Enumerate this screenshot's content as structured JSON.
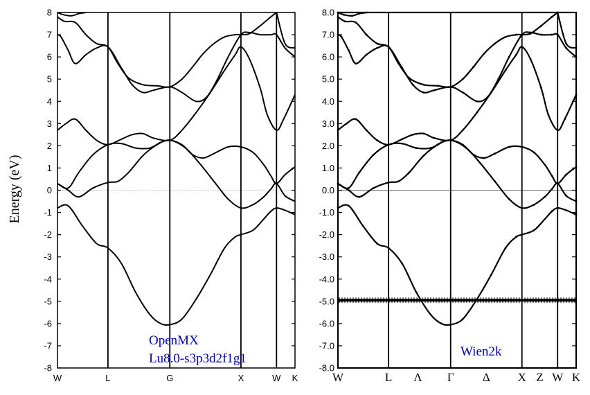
{
  "ylabel": "Energy (eV)",
  "colors": {
    "line": "#000000",
    "annotation": "#0000cc",
    "zero_line_left": "#aaaaaa",
    "zero_line_right": "#777777"
  },
  "chart_data": [
    {
      "type": "line",
      "label_lines": [
        "OpenMX",
        "Lu8.0-s3p3d2f1g1"
      ],
      "ylim": [
        -8,
        8
      ],
      "yticks": [
        "8",
        "7",
        "6",
        "5",
        "4",
        "3",
        "2",
        "1",
        "0",
        "-1",
        "-2",
        "-3",
        "-4",
        "-5",
        "-6",
        "-7",
        "-8"
      ],
      "xlim": [
        0,
        3.34
      ],
      "kpoints": [
        {
          "label": "W",
          "x": 0
        },
        {
          "label": "L",
          "x": 0.71
        },
        {
          "label": "G",
          "x": 1.58
        },
        {
          "label": "X",
          "x": 2.58
        },
        {
          "label": "W",
          "x": 3.08
        },
        {
          "label": "K",
          "x": 3.34
        }
      ],
      "grid": false,
      "bands": [
        [
          [
            0,
            -0.8
          ],
          [
            0.15,
            -0.7
          ],
          [
            0.35,
            -1.6
          ],
          [
            0.55,
            -2.4
          ],
          [
            0.71,
            -2.6
          ],
          [
            0.9,
            -3.3
          ],
          [
            1.1,
            -4.6
          ],
          [
            1.3,
            -5.6
          ],
          [
            1.45,
            -6.0
          ],
          [
            1.58,
            -6.05
          ],
          [
            1.75,
            -5.8
          ],
          [
            1.95,
            -4.9
          ],
          [
            2.15,
            -3.8
          ],
          [
            2.35,
            -2.6
          ],
          [
            2.5,
            -2.1
          ],
          [
            2.58,
            -2.0
          ],
          [
            2.75,
            -1.8
          ],
          [
            2.9,
            -1.3
          ],
          [
            3.0,
            -0.95
          ],
          [
            3.08,
            -0.8
          ],
          [
            3.2,
            -0.9
          ],
          [
            3.34,
            -1.1
          ]
        ],
        [
          [
            0,
            0.3
          ],
          [
            0.15,
            0.0
          ],
          [
            0.3,
            -0.3
          ],
          [
            0.5,
            0.1
          ],
          [
            0.71,
            0.35
          ],
          [
            0.85,
            0.4
          ],
          [
            1.0,
            0.8
          ],
          [
            1.2,
            1.55
          ],
          [
            1.4,
            2.05
          ],
          [
            1.58,
            2.25
          ],
          [
            1.8,
            1.9
          ],
          [
            2.0,
            1.2
          ],
          [
            2.2,
            0.4
          ],
          [
            2.4,
            -0.4
          ],
          [
            2.58,
            -0.8
          ],
          [
            2.75,
            -0.65
          ],
          [
            2.9,
            -0.3
          ],
          [
            3.0,
            0.05
          ],
          [
            3.08,
            0.3
          ],
          [
            3.2,
            -0.25
          ],
          [
            3.34,
            -0.5
          ]
        ],
        [
          [
            0,
            0.3
          ],
          [
            0.15,
            0.1
          ],
          [
            0.3,
            0.8
          ],
          [
            0.5,
            1.6
          ],
          [
            0.71,
            2.05
          ],
          [
            0.9,
            2.1
          ],
          [
            1.1,
            1.9
          ],
          [
            1.3,
            1.9
          ],
          [
            1.45,
            2.15
          ],
          [
            1.58,
            2.25
          ],
          [
            1.75,
            2.05
          ],
          [
            1.9,
            1.6
          ],
          [
            2.05,
            1.45
          ],
          [
            2.2,
            1.65
          ],
          [
            2.4,
            1.95
          ],
          [
            2.58,
            1.95
          ],
          [
            2.75,
            1.7
          ],
          [
            2.9,
            1.15
          ],
          [
            3.0,
            0.65
          ],
          [
            3.08,
            0.3
          ],
          [
            3.2,
            0.7
          ],
          [
            3.34,
            1.05
          ]
        ],
        [
          [
            0,
            2.7
          ],
          [
            0.12,
            3.0
          ],
          [
            0.25,
            3.2
          ],
          [
            0.4,
            2.7
          ],
          [
            0.55,
            2.25
          ],
          [
            0.71,
            2.05
          ],
          [
            0.9,
            2.3
          ],
          [
            1.05,
            2.5
          ],
          [
            1.2,
            2.55
          ],
          [
            1.35,
            2.35
          ],
          [
            1.58,
            2.25
          ],
          [
            1.75,
            2.7
          ],
          [
            1.95,
            3.5
          ],
          [
            2.15,
            4.4
          ],
          [
            2.35,
            5.4
          ],
          [
            2.5,
            6.1
          ],
          [
            2.58,
            6.45
          ],
          [
            2.7,
            5.9
          ],
          [
            2.85,
            4.6
          ],
          [
            2.95,
            3.4
          ],
          [
            3.08,
            2.7
          ],
          [
            3.18,
            3.2
          ],
          [
            3.34,
            4.3
          ]
        ],
        [
          [
            0,
            7.0
          ],
          [
            0.05,
            6.9
          ],
          [
            0.15,
            6.3
          ],
          [
            0.25,
            5.7
          ],
          [
            0.4,
            6.1
          ],
          [
            0.55,
            6.4
          ],
          [
            0.71,
            6.45
          ],
          [
            0.9,
            5.5
          ],
          [
            1.05,
            4.75
          ],
          [
            1.2,
            4.4
          ],
          [
            1.35,
            4.5
          ],
          [
            1.58,
            4.65
          ],
          [
            1.75,
            4.4
          ],
          [
            1.95,
            4.0
          ],
          [
            2.1,
            4.2
          ],
          [
            2.25,
            5.0
          ],
          [
            2.4,
            6.0
          ],
          [
            2.58,
            7.0
          ],
          [
            2.7,
            7.1
          ],
          [
            2.85,
            7.0
          ],
          [
            3.0,
            7.0
          ],
          [
            3.08,
            7.0
          ],
          [
            3.2,
            6.4
          ],
          [
            3.34,
            6.0
          ]
        ],
        [
          [
            0,
            7.8
          ],
          [
            0.1,
            7.6
          ],
          [
            0.25,
            7.55
          ],
          [
            0.4,
            7.0
          ],
          [
            0.55,
            6.6
          ],
          [
            0.71,
            6.45
          ],
          [
            0.85,
            5.7
          ],
          [
            1.0,
            5.05
          ],
          [
            1.2,
            4.75
          ],
          [
            1.4,
            4.7
          ],
          [
            1.58,
            4.65
          ],
          [
            1.75,
            5.0
          ],
          [
            1.9,
            5.55
          ],
          [
            2.05,
            6.15
          ],
          [
            2.2,
            6.6
          ],
          [
            2.35,
            6.9
          ],
          [
            2.5,
            7.0
          ],
          [
            2.58,
            7.0
          ],
          [
            2.7,
            7.05
          ],
          [
            2.85,
            7.4
          ],
          [
            3.0,
            7.8
          ],
          [
            3.08,
            8.0
          ]
        ],
        [
          [
            0,
            8.0
          ],
          [
            0.08,
            7.9
          ],
          [
            0.2,
            7.85
          ],
          [
            0.3,
            7.95
          ],
          [
            0.4,
            8.0
          ]
        ],
        [
          [
            3.08,
            8.0
          ],
          [
            3.2,
            6.6
          ],
          [
            3.34,
            6.4
          ]
        ]
      ]
    },
    {
      "type": "line",
      "label_lines": [
        "Wien2k"
      ],
      "ylim": [
        -8,
        8
      ],
      "yticks": [
        "8.0",
        "7.0",
        "6.0",
        "5.0",
        "4.0",
        "3.0",
        "2.0",
        "1.0",
        "0.0",
        "-1.0",
        "-2.0",
        "-3.0",
        "-4.0",
        "-5.0",
        "-6.0",
        "-7.0",
        "-8.0"
      ],
      "xlim": [
        0,
        3.34
      ],
      "kpoints": [
        {
          "label": "W",
          "x": 0
        },
        {
          "label": "L",
          "x": 0.71
        },
        {
          "label": "Λ",
          "x": 1.12
        },
        {
          "label": "Γ",
          "x": 1.58
        },
        {
          "label": "Δ",
          "x": 2.08
        },
        {
          "label": "X",
          "x": 2.58
        },
        {
          "label": "Z",
          "x": 2.83
        },
        {
          "label": "W",
          "x": 3.08
        },
        {
          "label": "K",
          "x": 3.34
        }
      ],
      "vertical_lines_at": [
        0.71,
        1.58,
        2.58,
        3.08
      ],
      "grid": false,
      "flat_band": -4.95,
      "bands": [
        [
          [
            0,
            -0.8
          ],
          [
            0.15,
            -0.7
          ],
          [
            0.35,
            -1.6
          ],
          [
            0.55,
            -2.4
          ],
          [
            0.71,
            -2.6
          ],
          [
            0.9,
            -3.3
          ],
          [
            1.1,
            -4.6
          ],
          [
            1.3,
            -5.6
          ],
          [
            1.45,
            -6.0
          ],
          [
            1.58,
            -6.05
          ],
          [
            1.75,
            -5.8
          ],
          [
            1.95,
            -4.9
          ],
          [
            2.15,
            -3.8
          ],
          [
            2.35,
            -2.6
          ],
          [
            2.5,
            -2.1
          ],
          [
            2.58,
            -2.0
          ],
          [
            2.75,
            -1.8
          ],
          [
            2.9,
            -1.3
          ],
          [
            3.0,
            -0.95
          ],
          [
            3.08,
            -0.8
          ],
          [
            3.2,
            -0.9
          ],
          [
            3.34,
            -1.1
          ]
        ],
        [
          [
            0,
            0.3
          ],
          [
            0.15,
            0.0
          ],
          [
            0.3,
            -0.3
          ],
          [
            0.5,
            0.1
          ],
          [
            0.71,
            0.35
          ],
          [
            0.85,
            0.4
          ],
          [
            1.0,
            0.8
          ],
          [
            1.2,
            1.55
          ],
          [
            1.4,
            2.05
          ],
          [
            1.58,
            2.25
          ],
          [
            1.8,
            1.9
          ],
          [
            2.0,
            1.2
          ],
          [
            2.2,
            0.4
          ],
          [
            2.4,
            -0.4
          ],
          [
            2.58,
            -0.8
          ],
          [
            2.75,
            -0.65
          ],
          [
            2.9,
            -0.3
          ],
          [
            3.0,
            0.05
          ],
          [
            3.08,
            0.3
          ],
          [
            3.2,
            -0.25
          ],
          [
            3.34,
            -0.5
          ]
        ],
        [
          [
            0,
            0.3
          ],
          [
            0.15,
            0.1
          ],
          [
            0.3,
            0.8
          ],
          [
            0.5,
            1.6
          ],
          [
            0.71,
            2.05
          ],
          [
            0.9,
            2.1
          ],
          [
            1.1,
            1.9
          ],
          [
            1.3,
            1.9
          ],
          [
            1.45,
            2.15
          ],
          [
            1.58,
            2.25
          ],
          [
            1.75,
            2.05
          ],
          [
            1.9,
            1.6
          ],
          [
            2.05,
            1.45
          ],
          [
            2.2,
            1.65
          ],
          [
            2.4,
            1.95
          ],
          [
            2.58,
            1.95
          ],
          [
            2.75,
            1.7
          ],
          [
            2.9,
            1.15
          ],
          [
            3.0,
            0.65
          ],
          [
            3.08,
            0.3
          ],
          [
            3.2,
            0.7
          ],
          [
            3.34,
            1.05
          ]
        ],
        [
          [
            0,
            2.7
          ],
          [
            0.12,
            3.0
          ],
          [
            0.25,
            3.2
          ],
          [
            0.4,
            2.7
          ],
          [
            0.55,
            2.25
          ],
          [
            0.71,
            2.05
          ],
          [
            0.9,
            2.3
          ],
          [
            1.05,
            2.5
          ],
          [
            1.2,
            2.55
          ],
          [
            1.35,
            2.35
          ],
          [
            1.58,
            2.25
          ],
          [
            1.75,
            2.7
          ],
          [
            1.95,
            3.5
          ],
          [
            2.15,
            4.4
          ],
          [
            2.35,
            5.4
          ],
          [
            2.5,
            6.1
          ],
          [
            2.58,
            6.45
          ],
          [
            2.7,
            5.9
          ],
          [
            2.85,
            4.6
          ],
          [
            2.95,
            3.4
          ],
          [
            3.08,
            2.7
          ],
          [
            3.18,
            3.2
          ],
          [
            3.34,
            4.3
          ]
        ],
        [
          [
            0,
            7.0
          ],
          [
            0.05,
            6.9
          ],
          [
            0.15,
            6.3
          ],
          [
            0.25,
            5.7
          ],
          [
            0.4,
            6.1
          ],
          [
            0.55,
            6.4
          ],
          [
            0.71,
            6.45
          ],
          [
            0.9,
            5.5
          ],
          [
            1.05,
            4.75
          ],
          [
            1.2,
            4.4
          ],
          [
            1.35,
            4.5
          ],
          [
            1.58,
            4.65
          ],
          [
            1.75,
            4.4
          ],
          [
            1.95,
            4.0
          ],
          [
            2.1,
            4.2
          ],
          [
            2.25,
            5.0
          ],
          [
            2.4,
            6.0
          ],
          [
            2.58,
            7.0
          ],
          [
            2.7,
            7.1
          ],
          [
            2.85,
            7.0
          ],
          [
            3.0,
            7.0
          ],
          [
            3.08,
            7.0
          ],
          [
            3.2,
            6.4
          ],
          [
            3.34,
            6.0
          ]
        ],
        [
          [
            0,
            7.8
          ],
          [
            0.1,
            7.6
          ],
          [
            0.25,
            7.55
          ],
          [
            0.4,
            7.0
          ],
          [
            0.55,
            6.6
          ],
          [
            0.71,
            6.45
          ],
          [
            0.85,
            5.7
          ],
          [
            1.0,
            5.05
          ],
          [
            1.2,
            4.75
          ],
          [
            1.4,
            4.7
          ],
          [
            1.58,
            4.65
          ],
          [
            1.75,
            5.0
          ],
          [
            1.9,
            5.55
          ],
          [
            2.05,
            6.15
          ],
          [
            2.2,
            6.6
          ],
          [
            2.35,
            6.9
          ],
          [
            2.5,
            7.0
          ],
          [
            2.58,
            7.0
          ],
          [
            2.7,
            7.05
          ],
          [
            2.85,
            7.4
          ],
          [
            3.0,
            7.8
          ],
          [
            3.08,
            8.0
          ]
        ],
        [
          [
            0,
            8.0
          ],
          [
            0.08,
            7.9
          ],
          [
            0.2,
            7.85
          ],
          [
            0.3,
            7.95
          ],
          [
            0.4,
            8.0
          ]
        ],
        [
          [
            3.08,
            8.0
          ],
          [
            3.2,
            6.6
          ],
          [
            3.34,
            6.4
          ]
        ]
      ]
    }
  ]
}
